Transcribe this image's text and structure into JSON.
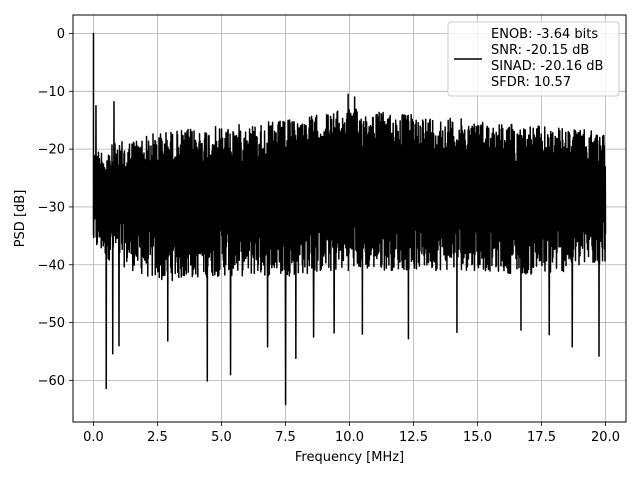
{
  "chart_data": {
    "type": "line",
    "title": "",
    "xlabel": "Frequency [MHz]",
    "ylabel": "PSD [dB]",
    "xlim": [
      -0.8,
      20.8
    ],
    "ylim": [
      -67.2,
      3.2
    ],
    "xticks": [
      0.0,
      2.5,
      5.0,
      7.5,
      10.0,
      12.5,
      15.0,
      17.5,
      20.0
    ],
    "xtick_labels": [
      "0.0",
      "2.5",
      "5.0",
      "7.5",
      "10.0",
      "12.5",
      "15.0",
      "17.5",
      "20.0"
    ],
    "yticks": [
      0,
      -10,
      -20,
      -30,
      -40,
      -50,
      -60
    ],
    "ytick_labels": [
      "0",
      "−10",
      "−20",
      "−30",
      "−40",
      "−50",
      "−60"
    ],
    "grid": true,
    "legend_position": "top-right",
    "series": [
      {
        "name": "ENOB: -3.64 bits\nSNR: -20.15 dB\nSINAD: -20.16 dB\nSFDR: 10.57",
        "color": "#000000",
        "x_range": [
          0.0,
          20.0
        ],
        "points": 2048,
        "dc_peak": 0.0,
        "envelope_top": [
          [
            0.0,
            -20
          ],
          [
            2.5,
            -17
          ],
          [
            5.0,
            -16
          ],
          [
            7.5,
            -15
          ],
          [
            10.0,
            -13
          ],
          [
            12.5,
            -14
          ],
          [
            15.0,
            -15
          ],
          [
            17.5,
            -16
          ],
          [
            20.0,
            -17
          ]
        ],
        "envelope_bottom": [
          [
            0.0,
            -38
          ],
          [
            2.5,
            -43
          ],
          [
            5.0,
            -42
          ],
          [
            7.5,
            -42
          ],
          [
            10.0,
            -41
          ],
          [
            12.5,
            -41
          ],
          [
            15.0,
            -41
          ],
          [
            17.5,
            -42
          ],
          [
            20.0,
            -40
          ]
        ],
        "peaks": [
          [
            0.1,
            -12.5
          ],
          [
            9.95,
            -10.5
          ],
          [
            10.2,
            -11
          ],
          [
            0.8,
            -11.8
          ]
        ],
        "dips": [
          [
            0.5,
            -61.4
          ],
          [
            0.75,
            -55.4
          ],
          [
            1.0,
            -54
          ],
          [
            2.9,
            -53.2
          ],
          [
            4.45,
            -60.1
          ],
          [
            5.35,
            -59
          ],
          [
            6.8,
            -54.2
          ],
          [
            7.5,
            -64.2
          ],
          [
            7.9,
            -56.2
          ],
          [
            8.6,
            -52.5
          ],
          [
            9.4,
            -51.8
          ],
          [
            10.5,
            -52
          ],
          [
            12.3,
            -52.8
          ],
          [
            14.2,
            -51.7
          ],
          [
            16.7,
            -51.3
          ],
          [
            17.8,
            -52.1
          ],
          [
            18.7,
            -54.2
          ],
          [
            19.75,
            -55.8
          ]
        ]
      }
    ],
    "legend_entries": [
      "ENOB: -3.64 bits",
      "SNR: -20.15 dB",
      "SINAD: -20.16 dB",
      "SFDR: 10.57"
    ]
  }
}
